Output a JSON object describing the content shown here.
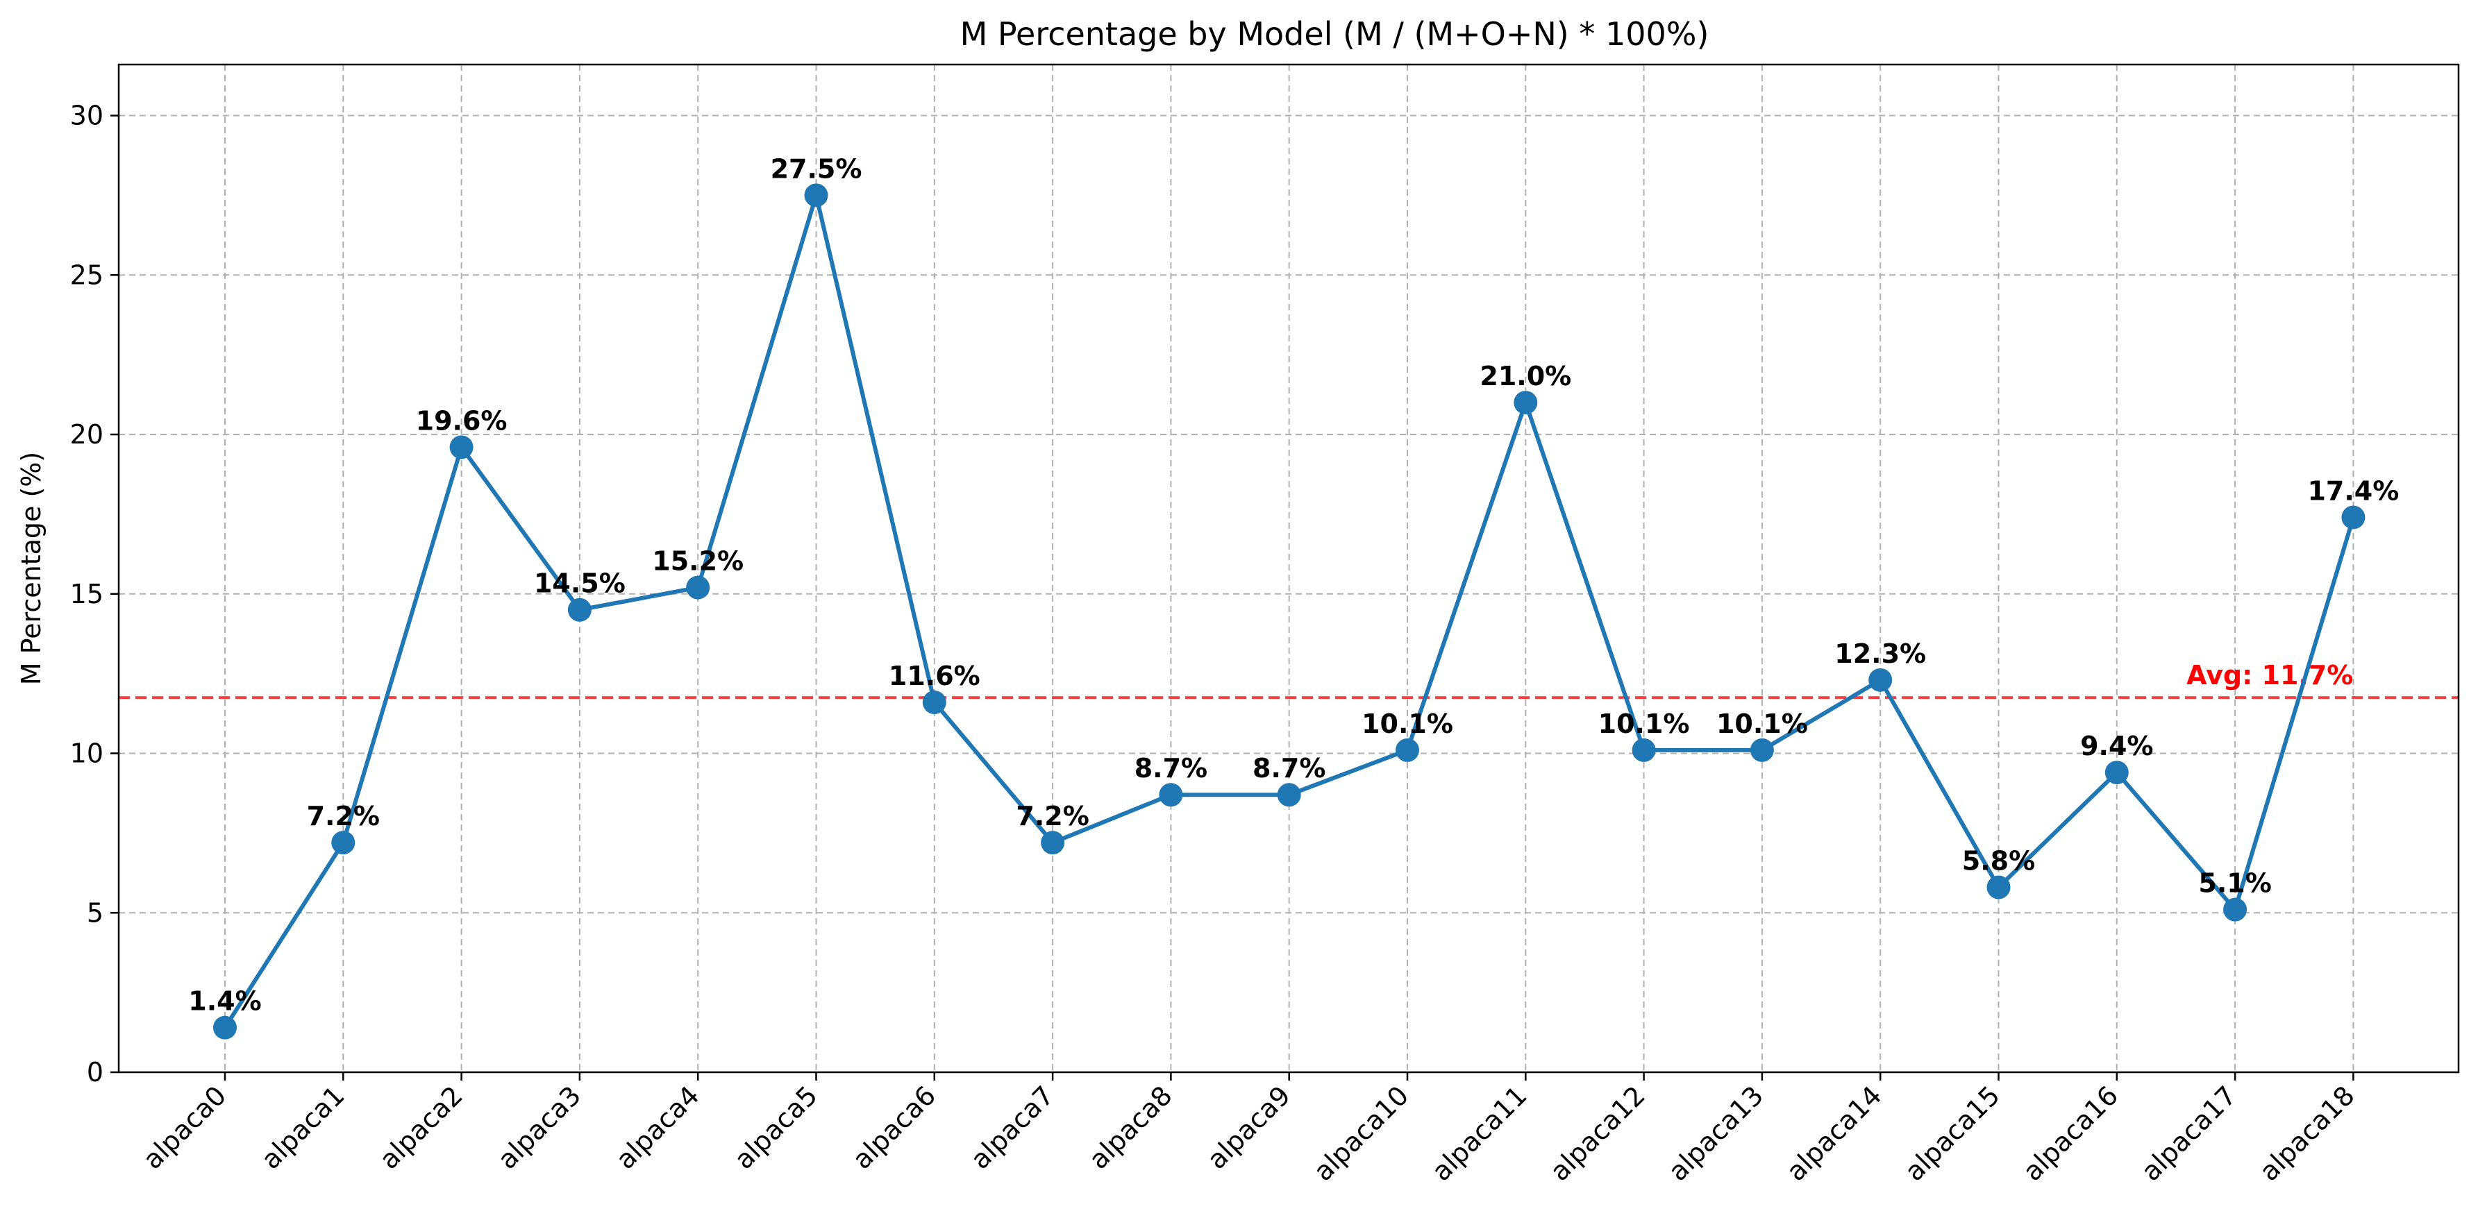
{
  "chart_data": {
    "type": "line",
    "title": "M Percentage by Model (M / (M+O+N) * 100%)",
    "xlabel": "",
    "ylabel": "M Percentage (%)",
    "categories": [
      "alpaca0",
      "alpaca1",
      "alpaca2",
      "alpaca3",
      "alpaca4",
      "alpaca5",
      "alpaca6",
      "alpaca7",
      "alpaca8",
      "alpaca9",
      "alpaca10",
      "alpaca11",
      "alpaca12",
      "alpaca13",
      "alpaca14",
      "alpaca15",
      "alpaca16",
      "alpaca17",
      "alpaca18"
    ],
    "values": [
      1.4,
      7.2,
      19.6,
      14.5,
      15.2,
      27.5,
      11.6,
      7.2,
      8.7,
      8.7,
      10.1,
      21.0,
      10.1,
      10.1,
      12.3,
      5.8,
      9.4,
      5.1,
      17.4
    ],
    "data_labels": [
      "1.4%",
      "7.2%",
      "19.6%",
      "14.5%",
      "15.2%",
      "27.5%",
      "11.6%",
      "7.2%",
      "8.7%",
      "8.7%",
      "10.1%",
      "21.0%",
      "10.1%",
      "10.1%",
      "12.3%",
      "5.8%",
      "9.4%",
      "5.1%",
      "17.4%"
    ],
    "ylim": [
      0,
      31.6
    ],
    "yticks": [
      0,
      5,
      10,
      15,
      20,
      25,
      30
    ],
    "ytick_labels": [
      "0",
      "5",
      "10",
      "15",
      "20",
      "25",
      "30"
    ],
    "grid": true,
    "average": {
      "value": 11.75,
      "label": "Avg: 11.7%",
      "color": "#ff0000"
    },
    "series_color": "#1f77b4",
    "grid_color": "#b0b0b0"
  }
}
